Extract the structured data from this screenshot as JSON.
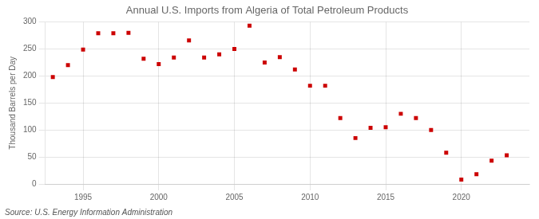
{
  "chart_data": {
    "type": "scatter",
    "title": "Annual U.S. Imports from Algeria of Total Petroleum Products",
    "ylabel": "Thousand Barrels per Day",
    "annotation": "Source: U.S. Energy Information Administration",
    "x": [
      1993,
      1994,
      1995,
      1996,
      1997,
      1998,
      1999,
      2000,
      2001,
      2002,
      2003,
      2004,
      2005,
      2006,
      2007,
      2008,
      2009,
      2010,
      2011,
      2012,
      2013,
      2014,
      2015,
      2016,
      2017,
      2018,
      2019,
      2020,
      2021,
      2022,
      2023
    ],
    "values": [
      198,
      220,
      249,
      279,
      279,
      280,
      232,
      222,
      234,
      266,
      234,
      240,
      250,
      293,
      225,
      235,
      212,
      182,
      182,
      122,
      85,
      104,
      105,
      130,
      122,
      100,
      58,
      8,
      18,
      43,
      53
    ],
    "color": "#cc0000",
    "marker": "square",
    "xlim": [
      1992.5,
      2024.5
    ],
    "xticks": [
      1995,
      2000,
      2005,
      2010,
      2015,
      2020
    ],
    "ylim": [
      0,
      300
    ],
    "yticks": [
      0,
      50,
      100,
      150,
      200,
      250,
      300
    ],
    "grid": true
  }
}
